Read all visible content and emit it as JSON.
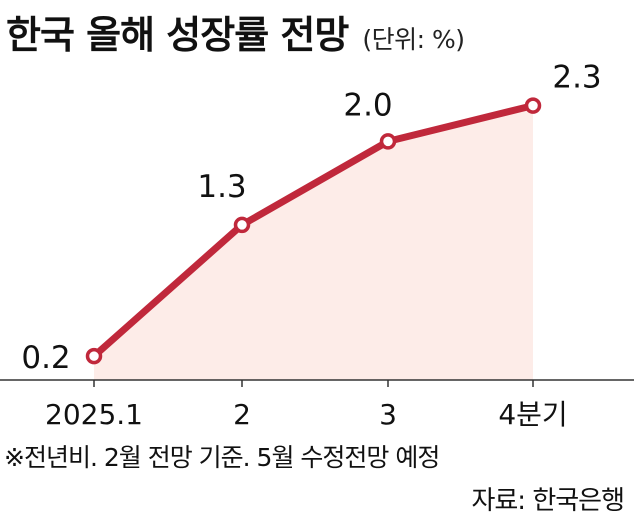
{
  "chart_data": {
    "type": "line",
    "title": "한국 올해 성장률 전망",
    "unit_note": "(단위: %)",
    "categories": [
      "2025.1",
      "2",
      "3",
      "4분기"
    ],
    "series": [
      {
        "values": [
          0.2,
          1.3,
          2.0,
          2.3
        ]
      }
    ],
    "data_labels": [
      "0.2",
      "1.3",
      "2.0",
      "2.3"
    ],
    "ylim": [
      0,
      2.85
    ],
    "grid": false,
    "colors": {
      "line": "#c0283b",
      "fill": "#fdece8",
      "axis": "#333333"
    }
  },
  "footnote": "※전년비. 2월 전망 기준. 5월 수정전망 예정",
  "source": "자료: 한국은행"
}
